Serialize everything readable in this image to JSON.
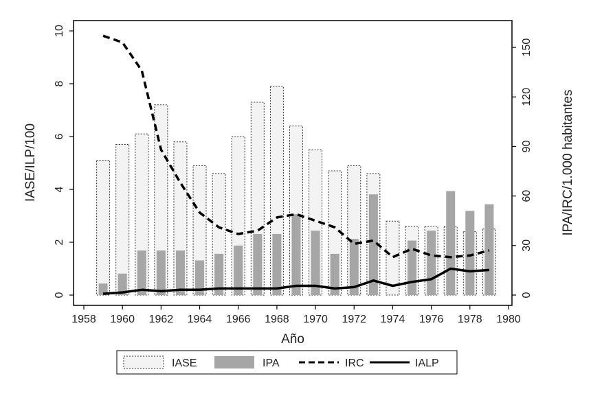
{
  "chart_data": {
    "type": "bar",
    "x": [
      1959,
      1960,
      1961,
      1962,
      1963,
      1964,
      1965,
      1966,
      1967,
      1968,
      1969,
      1970,
      1971,
      1972,
      1973,
      1974,
      1975,
      1976,
      1977,
      1978,
      1979
    ],
    "series": [
      {
        "name": "IASE",
        "kind": "bar",
        "axis": "left",
        "style": "dotted-outline",
        "values": [
          5.1,
          5.7,
          6.1,
          7.2,
          5.8,
          4.9,
          4.6,
          6.0,
          7.3,
          7.9,
          6.4,
          5.5,
          4.7,
          4.9,
          4.6,
          2.8,
          2.6,
          2.6,
          2.6,
          2.4,
          2.5
        ]
      },
      {
        "name": "IPA",
        "kind": "bar",
        "axis": "right",
        "style": "gray-fill",
        "values": [
          7,
          13,
          27,
          27,
          27,
          21,
          25,
          30,
          37,
          37,
          49,
          39,
          25,
          34,
          61,
          null,
          33,
          39,
          63,
          51,
          55
        ]
      },
      {
        "name": "IRC",
        "kind": "line",
        "axis": "right",
        "style": "dashed",
        "values": [
          157,
          153,
          136,
          88,
          68,
          50,
          41,
          37,
          39,
          47,
          49,
          45,
          41,
          31,
          33,
          23,
          28,
          24,
          23,
          24,
          27
        ]
      },
      {
        "name": "IALP",
        "kind": "line",
        "axis": "left",
        "style": "solid",
        "values": [
          0.05,
          0.1,
          0.2,
          0.15,
          0.2,
          0.2,
          0.25,
          0.25,
          0.25,
          0.25,
          0.35,
          0.35,
          0.25,
          0.3,
          0.55,
          0.35,
          0.5,
          0.6,
          1.0,
          0.9,
          0.95
        ]
      }
    ],
    "xlabel": "Año",
    "ylabel": "IASE/ILP/100",
    "ylabel_right": "IPA/IRC/1.000 habitantes",
    "xlim": [
      1958,
      1980
    ],
    "ylim": [
      0,
      10
    ],
    "ylim_right": [
      0,
      160
    ],
    "xticks": [
      "1958",
      "1960",
      "1962",
      "1964",
      "1966",
      "1968",
      "1970",
      "1972",
      "1974",
      "1976",
      "1978",
      "1980"
    ],
    "yticks": [
      "0",
      "2",
      "4",
      "6",
      "8",
      "10"
    ],
    "yticks_right": [
      "0",
      "30",
      "60",
      "90",
      "120",
      "150"
    ],
    "legend_position": "bottom",
    "grid": false
  }
}
